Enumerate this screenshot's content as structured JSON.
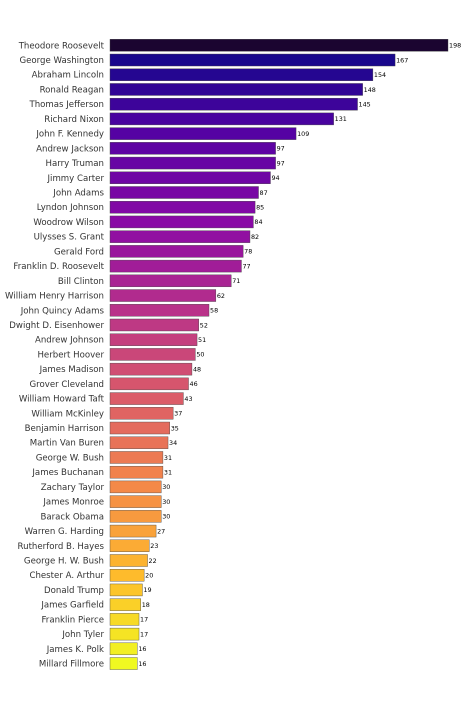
{
  "chart_data": {
    "type": "bar",
    "orientation": "horizontal",
    "title": "",
    "xlabel": "",
    "ylabel": "",
    "grid": false,
    "legend": "none",
    "colormap": "plasma",
    "xlim": [
      0,
      198
    ],
    "categories": [
      "Theodore Roosevelt",
      "George Washington",
      "Abraham Lincoln",
      "Ronald Reagan",
      "Thomas Jefferson",
      "Richard Nixon",
      "John F. Kennedy",
      "Andrew Jackson",
      "Harry Truman",
      "Jimmy Carter",
      "John Adams",
      "Lyndon Johnson",
      "Woodrow Wilson",
      "Ulysses S. Grant",
      "Gerald Ford",
      "Franklin D. Roosevelt",
      "Bill Clinton",
      "William Henry Harrison",
      "John Quincy Adams",
      "Dwight D. Eisenhower",
      "Andrew Johnson",
      "Herbert Hoover",
      "James Madison",
      "Grover Cleveland",
      "William Howard Taft",
      "William McKinley",
      "Benjamin Harrison",
      "Martin Van Buren",
      "George W. Bush",
      "James Buchanan",
      "Zachary Taylor",
      "James Monroe",
      "Barack Obama",
      "Warren G. Harding",
      "Rutherford B. Hayes",
      "George H. W. Bush",
      "Chester A. Arthur",
      "Donald Trump",
      "James Garfield",
      "Franklin Pierce",
      "John Tyler",
      "James K. Polk",
      "Millard Fillmore"
    ],
    "values": [
      198,
      167,
      154,
      148,
      145,
      131,
      109,
      97,
      97,
      94,
      87,
      85,
      84,
      82,
      78,
      77,
      71,
      62,
      58,
      52,
      51,
      50,
      48,
      46,
      43,
      37,
      35,
      34,
      31,
      31,
      30,
      30,
      30,
      27,
      23,
      22,
      20,
      19,
      18,
      17,
      17,
      16,
      16
    ],
    "colors": [
      "#0d0887",
      "#220690",
      "#330597",
      "#41049d",
      "#5002a2",
      "#5c01a6",
      "#6a00a8",
      "#7701a8",
      "#8405a7",
      "#900da4",
      "#9c179e",
      "#a62098",
      "#b12a90",
      "#ba3388",
      "#c23c81",
      "#cb4679",
      "#d24f71",
      "#d8576b",
      "#df6263",
      "#e46a5c",
      "#ea7457",
      "#ee7e4f",
      "#f38748",
      "#f69342",
      "#f99d3b",
      "#fba734",
      "#fdb42f",
      "#fdc029",
      "#fccc26",
      "#fad824",
      "#f6e626",
      "#f0f921"
    ]
  }
}
